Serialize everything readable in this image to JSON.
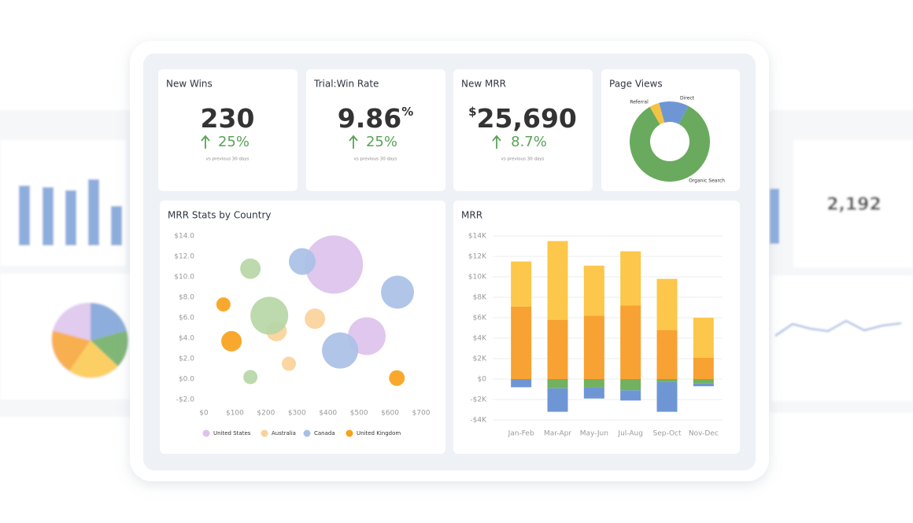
{
  "background": {
    "kpi_value": "2,192"
  },
  "kpis": [
    {
      "title": "New Wins",
      "value": "230",
      "change": "25%",
      "note": "vs previous 30 days"
    },
    {
      "title": "Trial:Win Rate",
      "value": "9.86",
      "unit": "%",
      "change": "25%",
      "note": "vs previous 30 days"
    },
    {
      "title": "New MRR",
      "prefix": "$",
      "value": "25,690",
      "change": "8.7%",
      "note": "vs previous 30 days"
    }
  ],
  "chart_data": [
    {
      "type": "pie",
      "title": "Page Views",
      "categories": [
        "Referral",
        "Direct",
        "Organic Search"
      ],
      "values": [
        4,
        12,
        84
      ],
      "colors": [
        "#f5c242",
        "#6f96d4",
        "#6aaa5e"
      ]
    },
    {
      "type": "bubble",
      "title": "MRR Stats by Country",
      "grid": false,
      "xlim": [
        0,
        700
      ],
      "xticks": [
        {
          "value": 0,
          "label": "$0"
        },
        {
          "value": 100,
          "label": "$100"
        },
        {
          "value": 200,
          "label": "$200"
        },
        {
          "value": 300,
          "label": "$300"
        },
        {
          "value": 400,
          "label": "$400"
        },
        {
          "value": 500,
          "label": "$500"
        },
        {
          "value": 600,
          "label": "$600"
        },
        {
          "value": 700,
          "label": "$700"
        }
      ],
      "ylim": [
        -2,
        14
      ],
      "yticks": [
        {
          "value": -2,
          "label": "-$2.0"
        },
        {
          "value": 0,
          "label": "$0.0"
        },
        {
          "value": 2,
          "label": "$2.0"
        },
        {
          "value": 4,
          "label": "$4.0"
        },
        {
          "value": 6,
          "label": "$6.0"
        },
        {
          "value": 8,
          "label": "$8.0"
        },
        {
          "value": 10,
          "label": "$10.0"
        },
        {
          "value": 12,
          "label": "$12.0"
        },
        {
          "value": 14,
          "label": "$14.0"
        }
      ],
      "series": [
        {
          "name": "United States",
          "color": "#dcc2ec",
          "x": [
            419,
            525
          ],
          "values": [
            11.2,
            4.2
          ],
          "sizes": [
            37,
            24
          ]
        },
        {
          "name": "Australia",
          "color": "#fbd19a",
          "x": [
            234,
            358,
            274
          ],
          "values": [
            4.7,
            5.9,
            1.5
          ],
          "sizes": [
            13,
            13,
            9
          ]
        },
        {
          "name": "Canada",
          "color": "#a9c0e6",
          "x": [
            317,
            624,
            439
          ],
          "values": [
            11.5,
            8.5,
            2.8
          ],
          "sizes": [
            17,
            21,
            23
          ]
        },
        {
          "name": "United Kingdom",
          "color": "#f7a21b",
          "x": [
            63,
            89,
            622
          ],
          "values": [
            7.3,
            3.7,
            0.1
          ],
          "sizes": [
            9,
            13,
            10
          ]
        },
        {
          "color": "#b6d7a6",
          "x": [
            150,
            211,
            150
          ],
          "values": [
            10.8,
            6.2,
            0.2
          ],
          "sizes": [
            13,
            24,
            9
          ]
        }
      ]
    },
    {
      "type": "bar",
      "title": "MRR",
      "stacked": true,
      "grid": true,
      "categories": [
        "Jan-Feb",
        "Mar-Apr",
        "May-Jun",
        "Jul-Aug",
        "Sep-Oct",
        "Nov-Dec"
      ],
      "ylim": [
        -4000,
        14000
      ],
      "yticks": [
        {
          "value": -4000,
          "label": "-$4K"
        },
        {
          "value": -2000,
          "label": "-$2K"
        },
        {
          "value": 0,
          "label": "$0"
        },
        {
          "value": 2000,
          "label": "$2K"
        },
        {
          "value": 4000,
          "label": "$4K"
        },
        {
          "value": 6000,
          "label": "$6K"
        },
        {
          "value": 8000,
          "label": "$8K"
        },
        {
          "value": 10000,
          "label": "$10K"
        },
        {
          "value": 12000,
          "label": "$12K"
        },
        {
          "value": 14000,
          "label": "$14K"
        }
      ],
      "series": [
        {
          "color": "#f7a233",
          "values": [
            7100,
            5800,
            6200,
            7200,
            4800,
            2100
          ]
        },
        {
          "color": "#fcc74a",
          "values": [
            4400,
            7700,
            4900,
            5300,
            5000,
            3900
          ]
        },
        {
          "color": "#72b160",
          "values": [
            0,
            -900,
            -800,
            -1100,
            -300,
            -400
          ]
        },
        {
          "color": "#6f96d4",
          "values": [
            -800,
            -2300,
            -1100,
            -1000,
            -2900,
            -300
          ]
        }
      ]
    }
  ]
}
